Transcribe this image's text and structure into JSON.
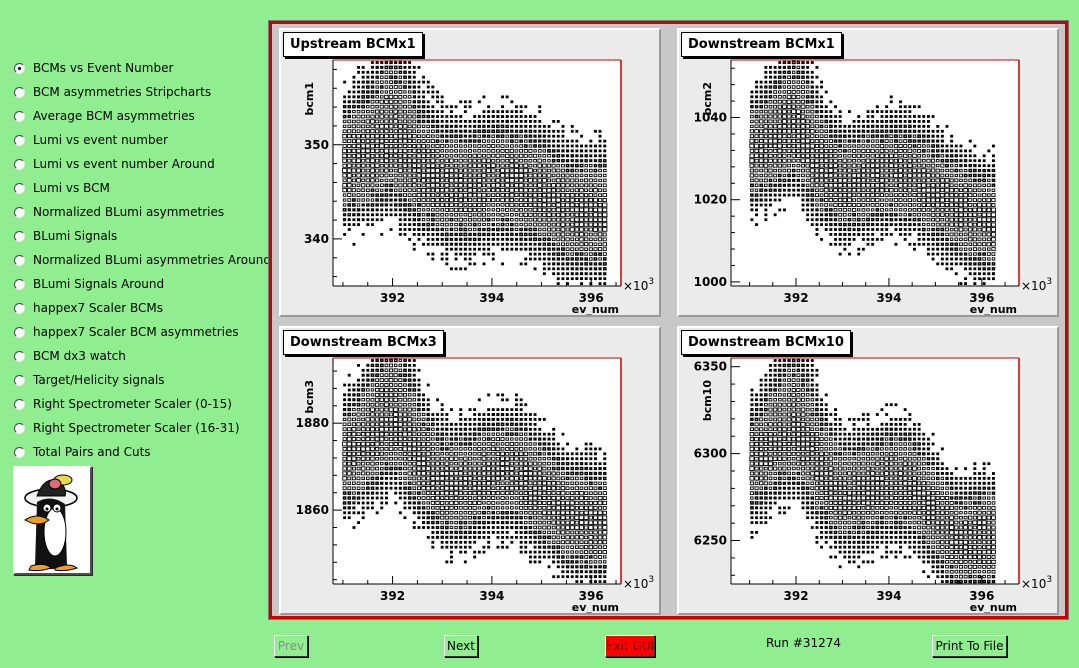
{
  "sidebar": {
    "items": [
      {
        "label": "BCMs vs Event Number",
        "checked": true
      },
      {
        "label": "BCM asymmetries Stripcharts",
        "checked": false
      },
      {
        "label": "Average BCM asymmetries",
        "checked": false
      },
      {
        "label": "Lumi vs event number",
        "checked": false
      },
      {
        "label": "Lumi vs event number Around",
        "checked": false
      },
      {
        "label": "Lumi vs BCM",
        "checked": false
      },
      {
        "label": "Normalized BLumi asymmetries",
        "checked": false
      },
      {
        "label": "BLumi Signals",
        "checked": false
      },
      {
        "label": "Normalized BLumi asymmetries Around",
        "checked": false
      },
      {
        "label": "BLumi Signals Around",
        "checked": false
      },
      {
        "label": "happex7 Scaler BCMs",
        "checked": false
      },
      {
        "label": "happex7 Scaler BCM asymmetries",
        "checked": false
      },
      {
        "label": "BCM dx3 watch",
        "checked": false
      },
      {
        "label": "Target/Helicity signals",
        "checked": false
      },
      {
        "label": "Right Spectrometer Scaler (0-15)",
        "checked": false
      },
      {
        "label": "Right Spectrometer Scaler (16-31)",
        "checked": false
      },
      {
        "label": "Total Pairs and Cuts",
        "checked": false
      }
    ]
  },
  "logo": {
    "icon": "penguin-mascot-icon"
  },
  "footer": {
    "prev_label": "Prev",
    "next_label": "Next",
    "exit_label": "Exit GUI",
    "run_label": "Run #31274",
    "print_label": "Print To File"
  },
  "colors": {
    "background": "#90ee90",
    "canvas_border": "#cc0000",
    "axis_frame_right": "#cc0000",
    "exit_button": "#ff0000"
  },
  "chart_data": [
    {
      "type": "heatmap",
      "title": "Upstream BCMx1",
      "xlabel": "ev_num",
      "ylabel": "bcm1",
      "x_multiplier_label": "×10",
      "x_multiplier_exp": "3",
      "xlim": [
        390.8,
        396.6
      ],
      "ylim": [
        335,
        359
      ],
      "x_ticks": [
        392,
        394,
        396
      ],
      "y_ticks": [
        340,
        350
      ],
      "center_curve": [
        [
          391.0,
          348
        ],
        [
          391.5,
          349
        ],
        [
          392.0,
          350
        ],
        [
          392.5,
          347.5
        ],
        [
          393.0,
          346
        ],
        [
          393.5,
          345.5
        ],
        [
          394.0,
          346.5
        ],
        [
          394.5,
          346
        ],
        [
          395.0,
          345
        ],
        [
          395.5,
          343
        ],
        [
          396.2,
          342.5
        ]
      ],
      "spread": 3.5,
      "peak_extra": 2.5
    },
    {
      "type": "heatmap",
      "title": "Downstream BCMx1",
      "xlabel": "ev_num",
      "ylabel": "bcm2",
      "x_multiplier_label": "×10",
      "x_multiplier_exp": "3",
      "xlim": [
        390.6,
        396.8
      ],
      "ylim": [
        999,
        1054
      ],
      "x_ticks": [
        392,
        394,
        396
      ],
      "y_ticks": [
        1000,
        1020,
        1040
      ],
      "center_curve": [
        [
          391.0,
          1031
        ],
        [
          391.5,
          1034
        ],
        [
          392.0,
          1036
        ],
        [
          392.5,
          1028
        ],
        [
          393.0,
          1024
        ],
        [
          393.5,
          1025
        ],
        [
          394.0,
          1027
        ],
        [
          394.5,
          1026
        ],
        [
          395.0,
          1022
        ],
        [
          395.5,
          1018
        ],
        [
          396.0,
          1015
        ]
      ],
      "spread": 7,
      "peak_extra": 5
    },
    {
      "type": "heatmap",
      "title": "Downstream BCMx3",
      "xlabel": "ev_num",
      "ylabel": "bcm3",
      "x_multiplier_label": "×10",
      "x_multiplier_exp": "3",
      "xlim": [
        390.8,
        396.6
      ],
      "ylim": [
        1843,
        1895
      ],
      "x_ticks": [
        392,
        394,
        396
      ],
      "y_ticks": [
        1860,
        1880
      ],
      "center_curve": [
        [
          391.0,
          1872
        ],
        [
          391.5,
          1876
        ],
        [
          392.0,
          1880
        ],
        [
          392.5,
          1872
        ],
        [
          393.0,
          1866
        ],
        [
          393.5,
          1866
        ],
        [
          394.0,
          1869
        ],
        [
          394.5,
          1869
        ],
        [
          395.0,
          1864
        ],
        [
          395.5,
          1859
        ],
        [
          396.2,
          1857
        ]
      ],
      "spread": 7,
      "peak_extra": 5
    },
    {
      "type": "heatmap",
      "title": "Downstream BCMx10",
      "xlabel": "ev_num",
      "ylabel": "bcm10",
      "x_multiplier_label": "×10",
      "x_multiplier_exp": "3",
      "xlim": [
        390.6,
        396.8
      ],
      "ylim": [
        6225,
        6355
      ],
      "x_ticks": [
        392,
        394,
        396
      ],
      "y_ticks": [
        6250,
        6300,
        6350
      ],
      "center_curve": [
        [
          391.0,
          6295
        ],
        [
          391.5,
          6305
        ],
        [
          392.0,
          6312
        ],
        [
          392.5,
          6290
        ],
        [
          393.0,
          6276
        ],
        [
          393.5,
          6279
        ],
        [
          394.0,
          6285
        ],
        [
          394.5,
          6282
        ],
        [
          395.0,
          6266
        ],
        [
          395.5,
          6248
        ],
        [
          396.0,
          6252
        ]
      ],
      "spread": 17,
      "peak_extra": 12
    }
  ]
}
